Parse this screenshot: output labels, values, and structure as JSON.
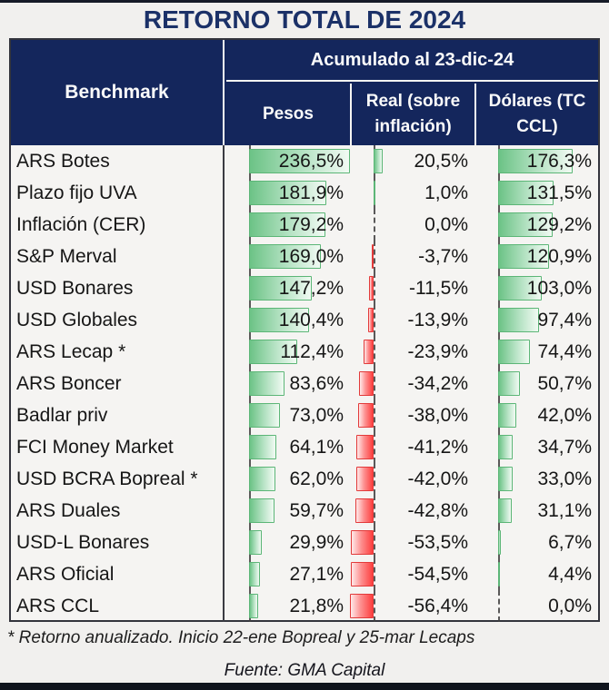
{
  "title": "RETORNO TOTAL DE 2024",
  "footnote": "* Retorno anualizado. Inicio 22-ene Bopreal y 25-mar Lecaps",
  "source": "Fuente: GMA Capital",
  "colors": {
    "header_bg": "#14265c",
    "title_text": "#1b3168",
    "positive_bar": "#6cc386",
    "negative_bar": "#fd3f3f",
    "page_bg": "#f1f0ee"
  },
  "chart_data": {
    "type": "table",
    "title": "RETORNO TOTAL DE 2024",
    "row_header": "Benchmark",
    "group_header": "Acumulado al 23-dic-24",
    "columns": [
      "Pesos",
      "Real (sobre inflación)",
      "Dólares (TC CCL)"
    ],
    "bar_axis": {
      "min": -56.4,
      "max": 236.5,
      "note": "shared data-bar scale across all three columns, dashed line = zero axis"
    },
    "rows": [
      {
        "benchmark": "ARS Botes",
        "values": [
          236.5,
          20.5,
          176.3
        ],
        "labels": [
          "236,5%",
          "20,5%",
          "176,3%"
        ]
      },
      {
        "benchmark": "Plazo fijo UVA",
        "values": [
          181.9,
          1.0,
          131.5
        ],
        "labels": [
          "181,9%",
          "1,0%",
          "131,5%"
        ]
      },
      {
        "benchmark": "Inflación (CER)",
        "values": [
          179.2,
          0.0,
          129.2
        ],
        "labels": [
          "179,2%",
          "0,0%",
          "129,2%"
        ]
      },
      {
        "benchmark": "S&P Merval",
        "values": [
          169.0,
          -3.7,
          120.9
        ],
        "labels": [
          "169,0%",
          "-3,7%",
          "120,9%"
        ]
      },
      {
        "benchmark": "USD Bonares",
        "values": [
          147.2,
          -11.5,
          103.0
        ],
        "labels": [
          "147,2%",
          "-11,5%",
          "103,0%"
        ]
      },
      {
        "benchmark": "USD Globales",
        "values": [
          140.4,
          -13.9,
          97.4
        ],
        "labels": [
          "140,4%",
          "-13,9%",
          "97,4%"
        ]
      },
      {
        "benchmark": "ARS Lecap *",
        "values": [
          112.4,
          -23.9,
          74.4
        ],
        "labels": [
          "112,4%",
          "-23,9%",
          "74,4%"
        ]
      },
      {
        "benchmark": "ARS Boncer",
        "values": [
          83.6,
          -34.2,
          50.7
        ],
        "labels": [
          "83,6%",
          "-34,2%",
          "50,7%"
        ]
      },
      {
        "benchmark": "Badlar priv",
        "values": [
          73.0,
          -38.0,
          42.0
        ],
        "labels": [
          "73,0%",
          "-38,0%",
          "42,0%"
        ]
      },
      {
        "benchmark": "FCI Money Market",
        "values": [
          64.1,
          -41.2,
          34.7
        ],
        "labels": [
          "64,1%",
          "-41,2%",
          "34,7%"
        ]
      },
      {
        "benchmark": "USD BCRA Bopreal *",
        "values": [
          62.0,
          -42.0,
          33.0
        ],
        "labels": [
          "62,0%",
          "-42,0%",
          "33,0%"
        ]
      },
      {
        "benchmark": "ARS Duales",
        "values": [
          59.7,
          -42.8,
          31.1
        ],
        "labels": [
          "59,7%",
          "-42,8%",
          "31,1%"
        ]
      },
      {
        "benchmark": "USD-L Bonares",
        "values": [
          29.9,
          -53.5,
          6.7
        ],
        "labels": [
          "29,9%",
          "-53,5%",
          "6,7%"
        ]
      },
      {
        "benchmark": "ARS Oficial",
        "values": [
          27.1,
          -54.5,
          4.4
        ],
        "labels": [
          "27,1%",
          "-54,5%",
          "4,4%"
        ]
      },
      {
        "benchmark": "ARS CCL",
        "values": [
          21.8,
          -56.4,
          0.0
        ],
        "labels": [
          "21,8%",
          "-56,4%",
          "0,0%"
        ]
      }
    ]
  }
}
